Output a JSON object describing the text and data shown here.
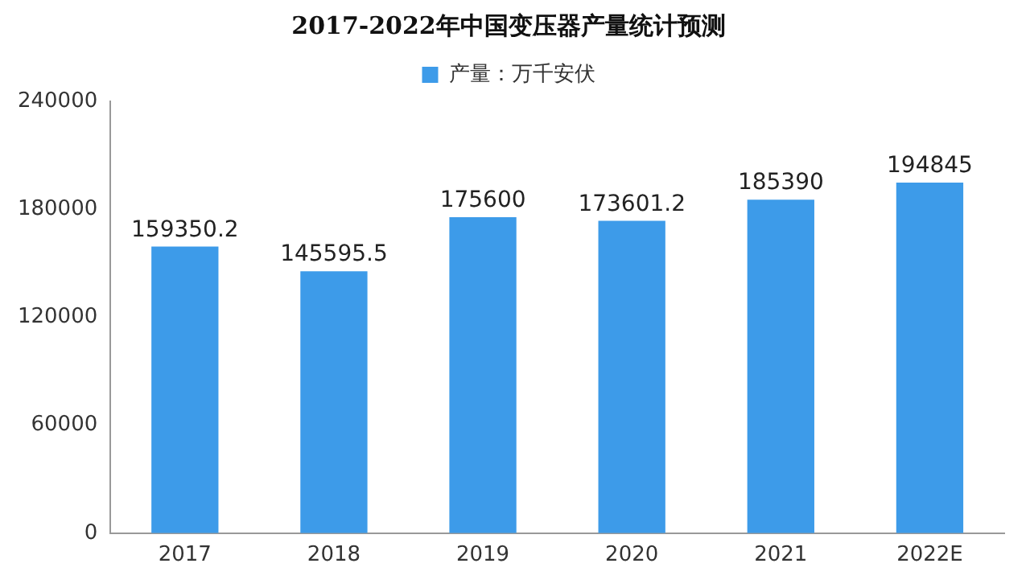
{
  "chart_data": {
    "type": "bar",
    "title": "2017-2022年中国变压器产量统计预测",
    "categories": [
      "2017",
      "2018",
      "2019",
      "2020",
      "2021",
      "2022E"
    ],
    "series": [
      {
        "name": "产量：万千安伏",
        "color": "#3d9be9",
        "values": [
          159350.2,
          145595.5,
          175600,
          173601.2,
          185390,
          194845
        ]
      }
    ],
    "ylim": [
      0,
      240000
    ],
    "yticks": [
      0,
      60000,
      120000,
      180000,
      240000
    ],
    "grid": false,
    "legend": "top",
    "data_labels": true
  }
}
